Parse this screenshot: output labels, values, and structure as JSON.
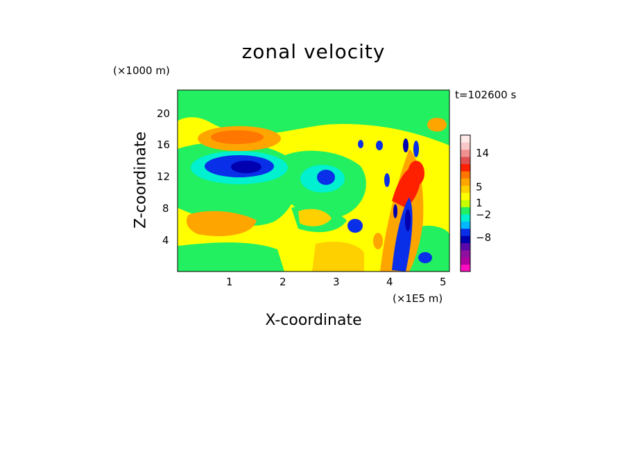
{
  "chart_data": {
    "type": "heatmap",
    "title": "zonal velocity",
    "xlabel": "X-coordinate",
    "ylabel": "Z-coordinate",
    "x_unit_label": "(×1E5 m)",
    "y_unit_label": "(×1000 m)",
    "time_label": "t=102600 s",
    "xlim": [
      0,
      5.1
    ],
    "ylim": [
      0,
      23
    ],
    "x_ticks": [
      "1",
      "2",
      "3",
      "4",
      "5"
    ],
    "y_ticks": [
      "4",
      "8",
      "12",
      "16",
      "20"
    ],
    "colorbar": {
      "tick_labels": [
        "14",
        "5",
        "1",
        "−2",
        "−8"
      ],
      "colors": [
        "#ff0fc0",
        "#b000a0",
        "#8f109f",
        "#5a0aaa",
        "#0000b0",
        "#0a2fe8",
        "#00b8ff",
        "#00f0d0",
        "#22f060",
        "#c8ff00",
        "#ffff00",
        "#ffd000",
        "#ffa500",
        "#ff7700",
        "#ff2000",
        "#e05050",
        "#f09090",
        "#f8c8c8",
        "#ffe8e8"
      ]
    },
    "features": [
      {
        "kind": "max",
        "x": 1.15,
        "z": 17.0,
        "value": 5
      },
      {
        "kind": "min",
        "x": 1.25,
        "z": 13.5,
        "value": -8
      },
      {
        "kind": "min",
        "x": 2.75,
        "z": 12.0,
        "value": -5
      },
      {
        "kind": "min",
        "x": 3.4,
        "z": 6.0,
        "value": -5
      },
      {
        "kind": "max",
        "x": 4.25,
        "z": 12.5,
        "value": 8
      }
    ]
  }
}
